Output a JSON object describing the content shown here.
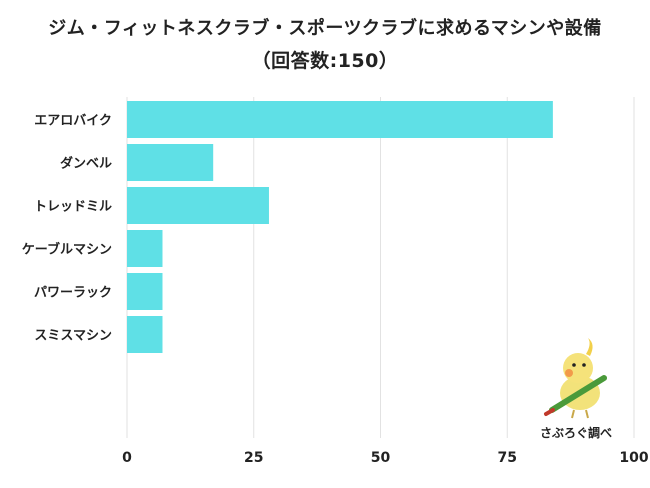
{
  "title": "ジム・フィットネスクラブ・スポーツクラブに求めるマシンや設備",
  "subtitle": "（回答数:150）",
  "credit": "さぶろぐ調べ",
  "colors": {
    "bar": "#5fe0e6",
    "grid": "#e2e2e2"
  },
  "chart_data": {
    "type": "bar",
    "orientation": "horizontal",
    "categories": [
      "エアロバイク",
      "ダンベル",
      "トレッドミル",
      "ケーブルマシン",
      "パワーラック",
      "スミスマシン"
    ],
    "values": [
      84,
      17,
      28,
      7,
      7,
      7
    ],
    "xlim": [
      0,
      100
    ],
    "xticks": [
      0,
      25,
      50,
      75,
      100
    ],
    "grid": true
  }
}
